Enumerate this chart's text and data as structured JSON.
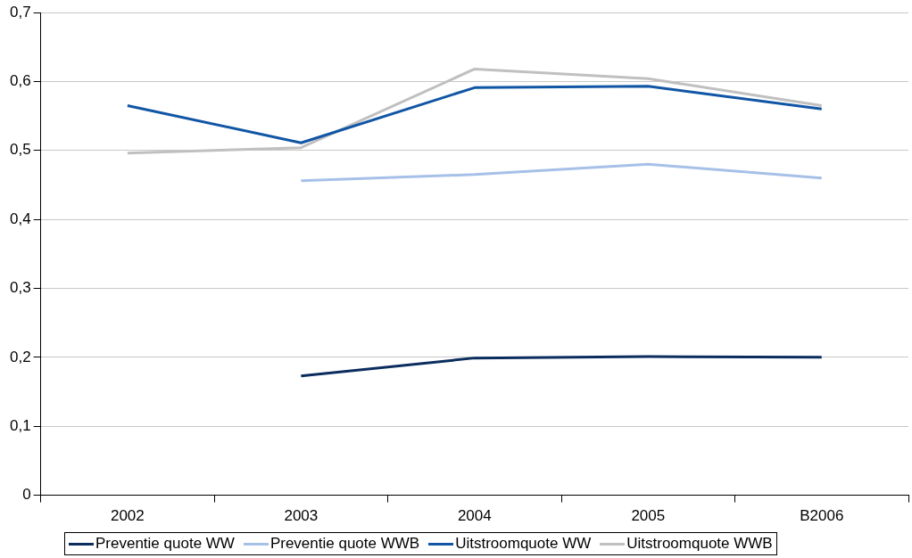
{
  "chart_data": {
    "type": "line",
    "categories": [
      "2002",
      "2003",
      "2004",
      "2005",
      "B2006"
    ],
    "series": [
      {
        "name": "Preventie quote WW",
        "color": "#0b2d5e",
        "values": [
          null,
          0.173,
          0.199,
          0.201,
          0.2
        ]
      },
      {
        "name": "Preventie quote WWB",
        "color": "#a6c0e8",
        "values": [
          null,
          0.456,
          0.465,
          0.48,
          0.46
        ]
      },
      {
        "name": "Uitstroomquote WW",
        "color": "#1155a5",
        "values": [
          0.565,
          0.511,
          0.591,
          0.593,
          0.56
        ]
      },
      {
        "name": "Uitstroomquote WWB",
        "color": "#c0c0c0",
        "values": [
          0.496,
          0.504,
          0.618,
          0.604,
          0.565
        ]
      }
    ],
    "ylim": [
      0,
      0.7
    ],
    "yticks": [
      0,
      {
        "value": 0.1,
        "label": "0,1"
      },
      {
        "value": 0.2,
        "label": "0,2"
      },
      {
        "value": 0.3,
        "label": "0,3"
      },
      {
        "value": 0.4,
        "label": "0,4"
      },
      {
        "value": 0.5,
        "label": "0,5"
      },
      {
        "value": 0.6,
        "label": "0,6"
      },
      {
        "value": 0.7,
        "label": "0,7"
      }
    ],
    "grid": "y",
    "legend": "bottom",
    "marker": "none",
    "line_style": "solid"
  }
}
